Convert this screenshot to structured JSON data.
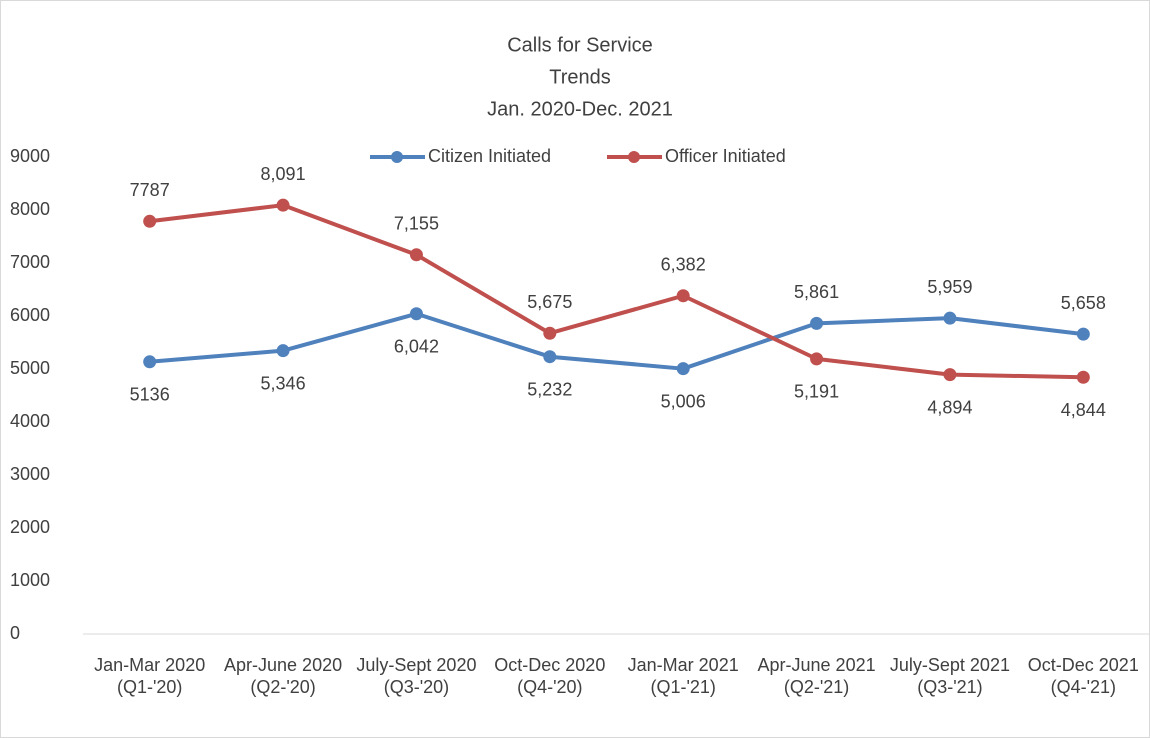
{
  "chart_data": {
    "type": "line",
    "title": [
      "Calls for Service",
      "Trends",
      "Jan. 2020-Dec. 2021"
    ],
    "categories": [
      "Jan-Mar 2020 (Q1-'20)",
      "Apr-June 2020  (Q2-'20)",
      "July-Sept 2020  (Q3-'20)",
      "Oct-Dec 2020 (Q4-'20)",
      "Jan-Mar 2021 (Q1-'21)",
      "Apr-June 2021  (Q2-'21)",
      "July-Sept 2021  (Q3-'21)",
      "Oct-Dec 2021 (Q4-'21)"
    ],
    "series": [
      {
        "name": "Citizen Initiated",
        "color": "#4f81bd",
        "values": [
          5136,
          5346,
          6042,
          5232,
          5006,
          5861,
          5959,
          5658
        ],
        "value_labels": [
          "5136",
          "5,346",
          "6,042",
          "5,232",
          "5,006",
          "5,861",
          "5,959",
          "5,658"
        ]
      },
      {
        "name": "Officer Initiated",
        "color": "#c0504d",
        "values": [
          7787,
          8091,
          7155,
          5675,
          6382,
          5191,
          4894,
          4844
        ],
        "value_labels": [
          "7787",
          "8,091",
          "7,155",
          "5,675",
          "6,382",
          "5,191",
          "4,894",
          "4,844"
        ]
      }
    ],
    "ylim": [
      0,
      9000
    ],
    "yticks": [
      0,
      1000,
      2000,
      3000,
      4000,
      5000,
      6000,
      7000,
      8000,
      9000
    ],
    "legend": "top"
  }
}
